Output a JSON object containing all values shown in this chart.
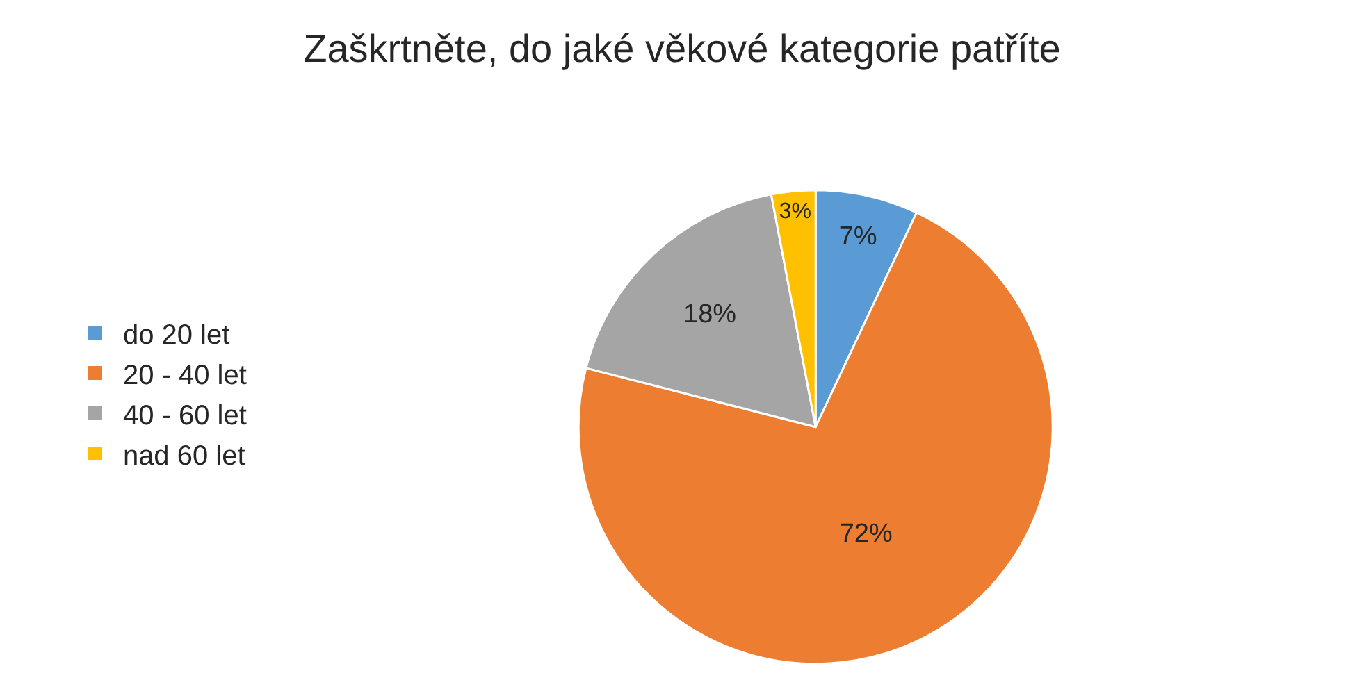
{
  "chart_data": {
    "type": "pie",
    "title": "Zaškrtněte, do jaké věkové kategorie patříte",
    "categories": [
      "do 20 let",
      "20 - 40 let",
      "40 - 60 let",
      "nad 60 let"
    ],
    "values": [
      7,
      72,
      18,
      3
    ],
    "colors": [
      "#5b9bd5",
      "#ed7d31",
      "#a5a5a5",
      "#ffc000"
    ],
    "value_labels": [
      "7%",
      "72%",
      "18%",
      "3%"
    ],
    "legend": "left"
  }
}
